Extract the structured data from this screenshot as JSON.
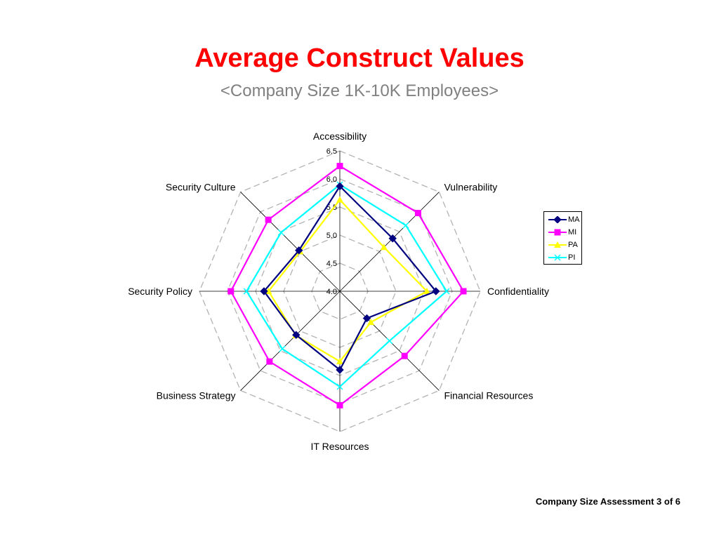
{
  "header": {
    "title": "Average Construct Values",
    "subtitle": "<Company Size 1K-10K Employees>"
  },
  "footer": {
    "text": "Company Size Assessment 3 of 6"
  },
  "chart_data": {
    "type": "radar",
    "axes": [
      "Accessibility",
      "Vulnerability",
      "Confidentiality",
      "Financial Resources",
      "IT Resources",
      "Business Strategy",
      "Security Policy",
      "Security Culture"
    ],
    "ticks": [
      "4.0",
      "4.5",
      "5.0",
      "5.5",
      "6.0",
      "6.5"
    ],
    "range": [
      4.0,
      6.5
    ],
    "grid": true,
    "legend_position": "right",
    "series": [
      {
        "name": "MA",
        "color": "#000080",
        "marker": "diamond",
        "values": [
          5.87,
          5.33,
          5.71,
          4.68,
          5.4,
          5.1,
          5.35,
          5.03
        ]
      },
      {
        "name": "MI",
        "color": "#ff00ff",
        "marker": "square",
        "values": [
          6.23,
          5.97,
          6.2,
          5.63,
          6.03,
          5.77,
          5.94,
          5.8
        ]
      },
      {
        "name": "PA",
        "color": "#ffff00",
        "marker": "triangle",
        "values": [
          5.63,
          5.11,
          5.55,
          4.78,
          5.25,
          5.11,
          5.27,
          5.0
        ]
      },
      {
        "name": "PI",
        "color": "#00ffff",
        "marker": "x",
        "values": [
          5.9,
          5.66,
          5.9,
          5.25,
          5.7,
          5.45,
          5.66,
          5.48
        ]
      }
    ]
  }
}
